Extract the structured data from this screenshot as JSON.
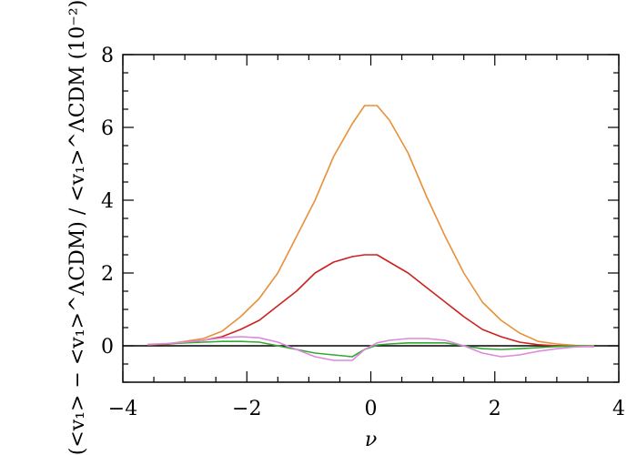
{
  "chart_data": {
    "type": "line",
    "xlabel": "ν",
    "ylabel": "(<v₁> − <v₁>^ΛCDM) / <v₁>^ΛCDM (10⁻²)",
    "xlim": [
      -4,
      4
    ],
    "ylim": [
      -1,
      8
    ],
    "xticks": [
      -4,
      -2,
      0,
      2,
      4
    ],
    "yticks": [
      0,
      2,
      4,
      6,
      8
    ],
    "xtick_labels": [
      "−4",
      "−2",
      "0",
      "2",
      "4"
    ],
    "ytick_labels": [
      "0",
      "2",
      "4",
      "6",
      "8"
    ],
    "grid": false,
    "zero_line": true,
    "x": [
      -3.6,
      -3.3,
      -3.0,
      -2.7,
      -2.4,
      -2.1,
      -1.8,
      -1.5,
      -1.2,
      -0.9,
      -0.6,
      -0.3,
      -0.1,
      0.1,
      0.3,
      0.6,
      0.9,
      1.2,
      1.5,
      1.8,
      2.1,
      2.4,
      2.7,
      3.0,
      3.3,
      3.6
    ],
    "series": [
      {
        "color": "#e8903a",
        "values": [
          0.02,
          0.05,
          0.12,
          0.2,
          0.4,
          0.8,
          1.3,
          2.0,
          3.0,
          4.0,
          5.2,
          6.1,
          6.6,
          6.6,
          6.2,
          5.3,
          4.1,
          3.0,
          2.0,
          1.2,
          0.7,
          0.35,
          0.12,
          0.05,
          0.01,
          0.0
        ]
      },
      {
        "color": "#cc2222",
        "values": [
          0.02,
          0.04,
          0.1,
          0.15,
          0.25,
          0.45,
          0.7,
          1.1,
          1.5,
          2.0,
          2.3,
          2.45,
          2.5,
          2.5,
          2.3,
          2.0,
          1.6,
          1.2,
          0.8,
          0.45,
          0.25,
          0.1,
          0.03,
          0.0,
          -0.02,
          -0.02
        ]
      },
      {
        "color": "#33aa33",
        "values": [
          0.03,
          0.05,
          0.08,
          0.1,
          0.12,
          0.12,
          0.1,
          0.0,
          -0.1,
          -0.2,
          -0.25,
          -0.3,
          -0.1,
          0.02,
          0.05,
          0.08,
          0.08,
          0.08,
          0.0,
          -0.08,
          -0.1,
          -0.08,
          -0.05,
          -0.02,
          0.0,
          0.0
        ]
      },
      {
        "color": "#dd88dd",
        "values": [
          0.04,
          0.06,
          0.1,
          0.15,
          0.22,
          0.25,
          0.22,
          0.1,
          -0.1,
          -0.3,
          -0.4,
          -0.4,
          -0.1,
          0.08,
          0.15,
          0.2,
          0.2,
          0.15,
          0.0,
          -0.2,
          -0.3,
          -0.25,
          -0.15,
          -0.08,
          -0.03,
          -0.01
        ]
      }
    ],
    "zero_line_color": "#000000"
  }
}
